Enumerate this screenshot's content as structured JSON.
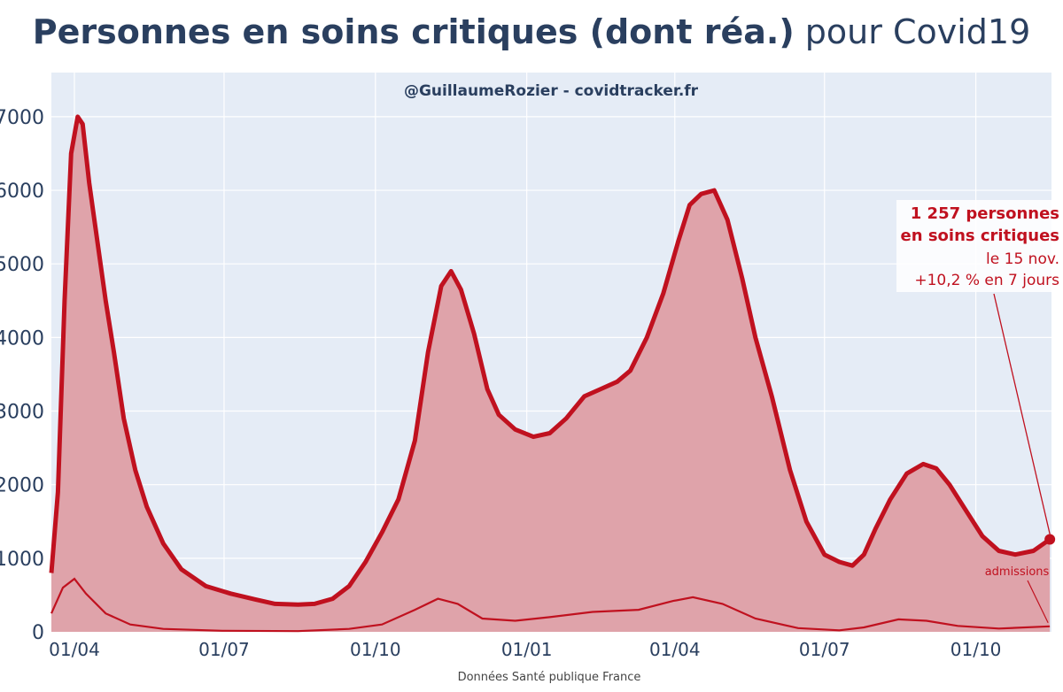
{
  "title_bold": "Personnes en soins critiques (dont réa.)",
  "title_light": "pour Covid19",
  "subtitle": "@GuillaumeRozier - covidtracker.fr",
  "source": "Données Santé publique France",
  "colors": {
    "line": "#c0111f",
    "area": "#dfa3aa",
    "admissions": "#e06068",
    "plot_bg": "#e5ecf6",
    "text": "#2a3f5f"
  },
  "annotation": {
    "line1": "1 257 personnes",
    "line2": "en soins critiques",
    "line3": "le 15 nov.",
    "line4": "+10,2 % en 7 jours"
  },
  "admissions_label": "admissions",
  "chart_data": {
    "type": "area",
    "x_axis": {
      "type": "date",
      "ticks": [
        "01/04",
        "01/07",
        "01/10",
        "01/01",
        "01/04",
        "01/07",
        "01/10"
      ],
      "tick_dates": [
        "2020-04-01",
        "2020-07-01",
        "2020-10-01",
        "2021-01-01",
        "2021-04-01",
        "2021-07-01",
        "2021-10-01"
      ],
      "range": [
        "2020-03-18",
        "2021-11-16"
      ]
    },
    "y_axis": {
      "ticks": [
        0,
        1000,
        2000,
        3000,
        4000,
        5000,
        6000,
        7000
      ],
      "range": [
        0,
        7600
      ]
    },
    "grid": true,
    "series": [
      {
        "name": "",
        "style": "line+area",
        "points": [
          [
            "2020-03-18",
            800
          ],
          [
            "2020-03-22",
            1900
          ],
          [
            "2020-03-26",
            4500
          ],
          [
            "2020-03-30",
            6500
          ],
          [
            "2020-04-03",
            7000
          ],
          [
            "2020-04-06",
            6900
          ],
          [
            "2020-04-10",
            6100
          ],
          [
            "2020-04-15",
            5300
          ],
          [
            "2020-04-20",
            4500
          ],
          [
            "2020-04-25",
            3800
          ],
          [
            "2020-05-01",
            2900
          ],
          [
            "2020-05-08",
            2200
          ],
          [
            "2020-05-15",
            1700
          ],
          [
            "2020-05-25",
            1200
          ],
          [
            "2020-06-05",
            850
          ],
          [
            "2020-06-20",
            620
          ],
          [
            "2020-07-05",
            520
          ],
          [
            "2020-07-20",
            440
          ],
          [
            "2020-08-01",
            380
          ],
          [
            "2020-08-15",
            370
          ],
          [
            "2020-08-25",
            380
          ],
          [
            "2020-09-05",
            450
          ],
          [
            "2020-09-15",
            620
          ],
          [
            "2020-09-25",
            950
          ],
          [
            "2020-10-05",
            1350
          ],
          [
            "2020-10-15",
            1800
          ],
          [
            "2020-10-25",
            2600
          ],
          [
            "2020-11-02",
            3800
          ],
          [
            "2020-11-10",
            4700
          ],
          [
            "2020-11-16",
            4900
          ],
          [
            "2020-11-22",
            4650
          ],
          [
            "2020-11-30",
            4050
          ],
          [
            "2020-12-08",
            3300
          ],
          [
            "2020-12-15",
            2950
          ],
          [
            "2020-12-25",
            2750
          ],
          [
            "2021-01-05",
            2650
          ],
          [
            "2021-01-15",
            2700
          ],
          [
            "2021-01-25",
            2900
          ],
          [
            "2021-02-05",
            3200
          ],
          [
            "2021-02-15",
            3300
          ],
          [
            "2021-02-25",
            3400
          ],
          [
            "2021-03-05",
            3550
          ],
          [
            "2021-03-15",
            4000
          ],
          [
            "2021-03-25",
            4600
          ],
          [
            "2021-04-03",
            5300
          ],
          [
            "2021-04-10",
            5800
          ],
          [
            "2021-04-17",
            5950
          ],
          [
            "2021-04-25",
            6000
          ],
          [
            "2021-05-03",
            5600
          ],
          [
            "2021-05-12",
            4800
          ],
          [
            "2021-05-20",
            4000
          ],
          [
            "2021-05-30",
            3200
          ],
          [
            "2021-06-10",
            2200
          ],
          [
            "2021-06-20",
            1500
          ],
          [
            "2021-07-01",
            1050
          ],
          [
            "2021-07-10",
            950
          ],
          [
            "2021-07-18",
            900
          ],
          [
            "2021-07-25",
            1050
          ],
          [
            "2021-08-01",
            1400
          ],
          [
            "2021-08-10",
            1800
          ],
          [
            "2021-08-20",
            2150
          ],
          [
            "2021-08-30",
            2280
          ],
          [
            "2021-09-07",
            2220
          ],
          [
            "2021-09-15",
            2000
          ],
          [
            "2021-09-25",
            1650
          ],
          [
            "2021-10-05",
            1300
          ],
          [
            "2021-10-15",
            1100
          ],
          [
            "2021-10-25",
            1050
          ],
          [
            "2021-11-05",
            1100
          ],
          [
            "2021-11-15",
            1257
          ]
        ]
      },
      {
        "name": "admissions",
        "style": "bars+smoothed-line",
        "points": [
          [
            "2020-03-18",
            250
          ],
          [
            "2020-03-25",
            600
          ],
          [
            "2020-04-01",
            720
          ],
          [
            "2020-04-08",
            520
          ],
          [
            "2020-04-20",
            250
          ],
          [
            "2020-05-05",
            100
          ],
          [
            "2020-05-25",
            40
          ],
          [
            "2020-06-30",
            15
          ],
          [
            "2020-08-15",
            10
          ],
          [
            "2020-09-15",
            40
          ],
          [
            "2020-10-05",
            100
          ],
          [
            "2020-10-25",
            300
          ],
          [
            "2020-11-08",
            450
          ],
          [
            "2020-11-20",
            380
          ],
          [
            "2020-12-05",
            180
          ],
          [
            "2020-12-25",
            150
          ],
          [
            "2021-01-15",
            200
          ],
          [
            "2021-02-10",
            270
          ],
          [
            "2021-03-10",
            300
          ],
          [
            "2021-03-31",
            420
          ],
          [
            "2021-04-12",
            470
          ],
          [
            "2021-04-30",
            380
          ],
          [
            "2021-05-20",
            180
          ],
          [
            "2021-06-15",
            50
          ],
          [
            "2021-07-10",
            20
          ],
          [
            "2021-07-25",
            60
          ],
          [
            "2021-08-15",
            170
          ],
          [
            "2021-09-01",
            150
          ],
          [
            "2021-09-20",
            80
          ],
          [
            "2021-10-15",
            45
          ],
          [
            "2021-11-15",
            75
          ]
        ]
      }
    ]
  }
}
